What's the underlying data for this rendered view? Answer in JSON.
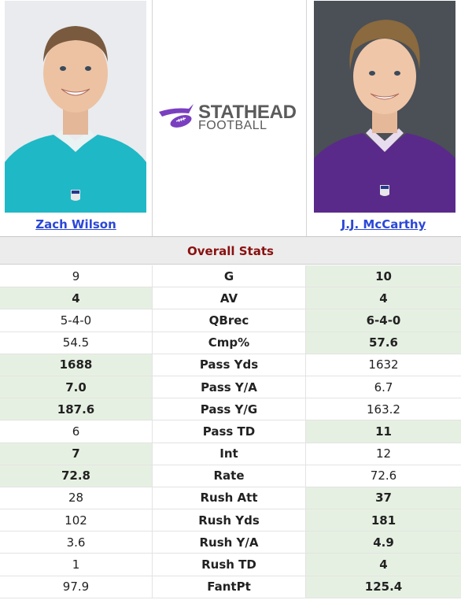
{
  "players": {
    "left": {
      "name": "Zach Wilson",
      "jersey_color": "#19b3c2"
    },
    "right": {
      "name": "J.J. McCarthy",
      "jersey_color": "#5a2a8a"
    }
  },
  "logo": {
    "main": "STATHEAD",
    "sub": "FOOTBALL",
    "accent": "#7a3fc0"
  },
  "section_title": "Overall Stats",
  "stats": [
    {
      "label": "G",
      "left": "9",
      "right": "10",
      "winner": "right"
    },
    {
      "label": "AV",
      "left": "4",
      "right": "4",
      "winner": "both"
    },
    {
      "label": "QBrec",
      "left": "5-4-0",
      "right": "6-4-0",
      "winner": "right"
    },
    {
      "label": "Cmp%",
      "left": "54.5",
      "right": "57.6",
      "winner": "right"
    },
    {
      "label": "Pass Yds",
      "left": "1688",
      "right": "1632",
      "winner": "left"
    },
    {
      "label": "Pass Y/A",
      "left": "7.0",
      "right": "6.7",
      "winner": "left"
    },
    {
      "label": "Pass Y/G",
      "left": "187.6",
      "right": "163.2",
      "winner": "left"
    },
    {
      "label": "Pass TD",
      "left": "6",
      "right": "11",
      "winner": "right"
    },
    {
      "label": "Int",
      "left": "7",
      "right": "12",
      "winner": "left"
    },
    {
      "label": "Rate",
      "left": "72.8",
      "right": "72.6",
      "winner": "left"
    },
    {
      "label": "Rush Att",
      "left": "28",
      "right": "37",
      "winner": "right"
    },
    {
      "label": "Rush Yds",
      "left": "102",
      "right": "181",
      "winner": "right"
    },
    {
      "label": "Rush Y/A",
      "left": "3.6",
      "right": "4.9",
      "winner": "right"
    },
    {
      "label": "Rush TD",
      "left": "1",
      "right": "4",
      "winner": "right"
    },
    {
      "label": "FantPt",
      "left": "97.9",
      "right": "125.4",
      "winner": "right"
    }
  ]
}
